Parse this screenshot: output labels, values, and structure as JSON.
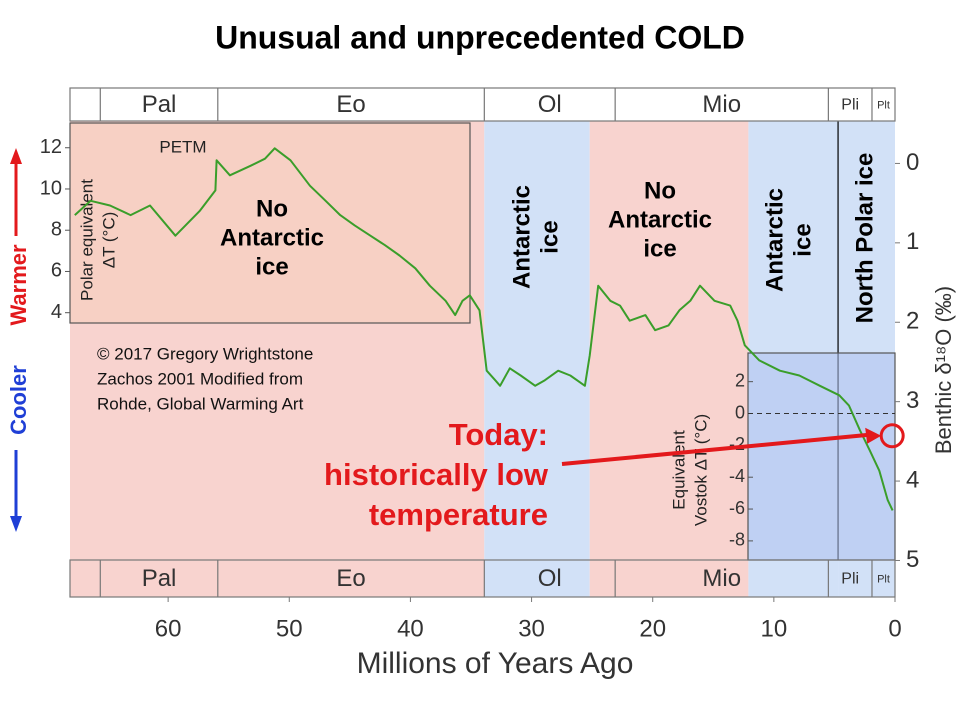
{
  "chart_data": {
    "type": "line",
    "title": "Unusual and unprecedented COLD",
    "xlabel": "Millions of Years Ago",
    "y2label": "Benthic δ¹⁸O (‰)",
    "xlim": [
      68.1,
      0
    ],
    "xticks": [
      60,
      50,
      40,
      30,
      20,
      10,
      0
    ],
    "y2lim": [
      5.46,
      -0.95
    ],
    "y2ticks": [
      0,
      1,
      2,
      3,
      4,
      5
    ],
    "x": [
      67.7,
      66.4,
      64.8,
      63.1,
      61.5,
      59.4,
      57.4,
      56.1,
      56.0,
      54.9,
      53.2,
      52.0,
      51.2,
      49.9,
      48.3,
      47.0,
      45.8,
      44.6,
      43.3,
      42.1,
      40.9,
      39.6,
      38.4,
      37.1,
      36.3,
      35.7,
      35.1,
      34.3,
      33.7,
      33.0,
      32.6,
      31.8,
      30.9,
      29.7,
      28.9,
      27.8,
      26.8,
      25.6,
      25.2,
      24.5,
      23.5,
      22.7,
      21.9,
      20.6,
      19.8,
      18.7,
      17.8,
      16.9,
      16.1,
      14.9,
      13.6,
      13.0,
      12.4,
      11.2,
      9.5,
      7.9,
      6.2,
      4.6,
      3.8,
      2.9,
      2.1,
      1.3,
      0.6,
      0.2
    ],
    "series": [
      {
        "color": "#3a9e2a",
        "axis": "y2",
        "values": [
          0.65,
          0.47,
          0.53,
          0.65,
          0.53,
          0.91,
          0.6,
          0.34,
          -0.04,
          0.15,
          0.03,
          -0.06,
          -0.19,
          -0.04,
          0.28,
          0.47,
          0.65,
          0.78,
          0.91,
          1.03,
          1.16,
          1.32,
          1.54,
          1.73,
          1.91,
          1.73,
          1.66,
          1.85,
          2.61,
          2.73,
          2.8,
          2.58,
          2.67,
          2.8,
          2.73,
          2.61,
          2.67,
          2.8,
          2.42,
          1.54,
          1.73,
          1.79,
          1.98,
          1.91,
          2.1,
          2.04,
          1.85,
          1.73,
          1.54,
          1.73,
          1.79,
          1.98,
          2.29,
          2.48,
          2.61,
          2.67,
          2.8,
          2.92,
          3.05,
          3.36,
          3.61,
          3.87,
          4.24,
          4.37
        ]
      }
    ],
    "left_axis": {
      "label": [
        "Polar equivalent",
        "ΔT (°C)"
      ],
      "ylim": [
        3.5,
        13.2
      ],
      "yticks": [
        4,
        6,
        8,
        10,
        12
      ]
    },
    "vostok_axis": {
      "label": [
        "Equivalent",
        "Vostok ΔT (°C)"
      ],
      "ylim": [
        -9.2,
        3.8
      ],
      "yticks": [
        2,
        0,
        -2,
        -4,
        -6,
        -8
      ]
    },
    "regions": [
      {
        "start": 68.1,
        "end": 33.9,
        "color": "#f8d3cf",
        "label": [
          "No",
          "Antarctic",
          "ice"
        ],
        "vertical": false
      },
      {
        "start": 33.9,
        "end": 25.2,
        "color": "#d2e1f7",
        "label": [
          "Antarctic",
          "ice"
        ],
        "vertical": true
      },
      {
        "start": 25.2,
        "end": 12.1,
        "color": "#f8d3cf",
        "label": [
          "No",
          "Antarctic",
          "ice"
        ],
        "vertical": false
      },
      {
        "start": 12.1,
        "end": 4.7,
        "color": "#d2e1f7",
        "label": [
          "Antarctic",
          "ice"
        ],
        "vertical": true
      },
      {
        "start": 4.7,
        "end": 0,
        "color": "#d2e1f7",
        "label": [
          "North Polar ice"
        ],
        "vertical": true
      }
    ],
    "epochs": [
      {
        "label": "Pal",
        "start": 65.6,
        "end": 55.9
      },
      {
        "label": "Eo",
        "start": 55.9,
        "end": 33.9
      },
      {
        "label": "Ol",
        "start": 33.9,
        "end": 23.1
      },
      {
        "label": "Mio",
        "start": 23.1,
        "end": 5.5
      },
      {
        "label": "Pli",
        "start": 5.5,
        "end": 1.9
      },
      {
        "label": "Plt",
        "start": 1.9,
        "end": 0
      }
    ],
    "annotations": {
      "petm": "PETM",
      "credit": [
        "© 2017 Gregory Wrightstone",
        "Zachos 2001 Modified from",
        "Rohde, Global Warming Art"
      ],
      "today": [
        "Today:",
        "historically low",
        "temperature"
      ],
      "cooler": "Cooler",
      "warmer": "Warmer"
    },
    "today_marker": {
      "x": 0.15,
      "y": 3.43,
      "color": "#e3191c"
    }
  }
}
